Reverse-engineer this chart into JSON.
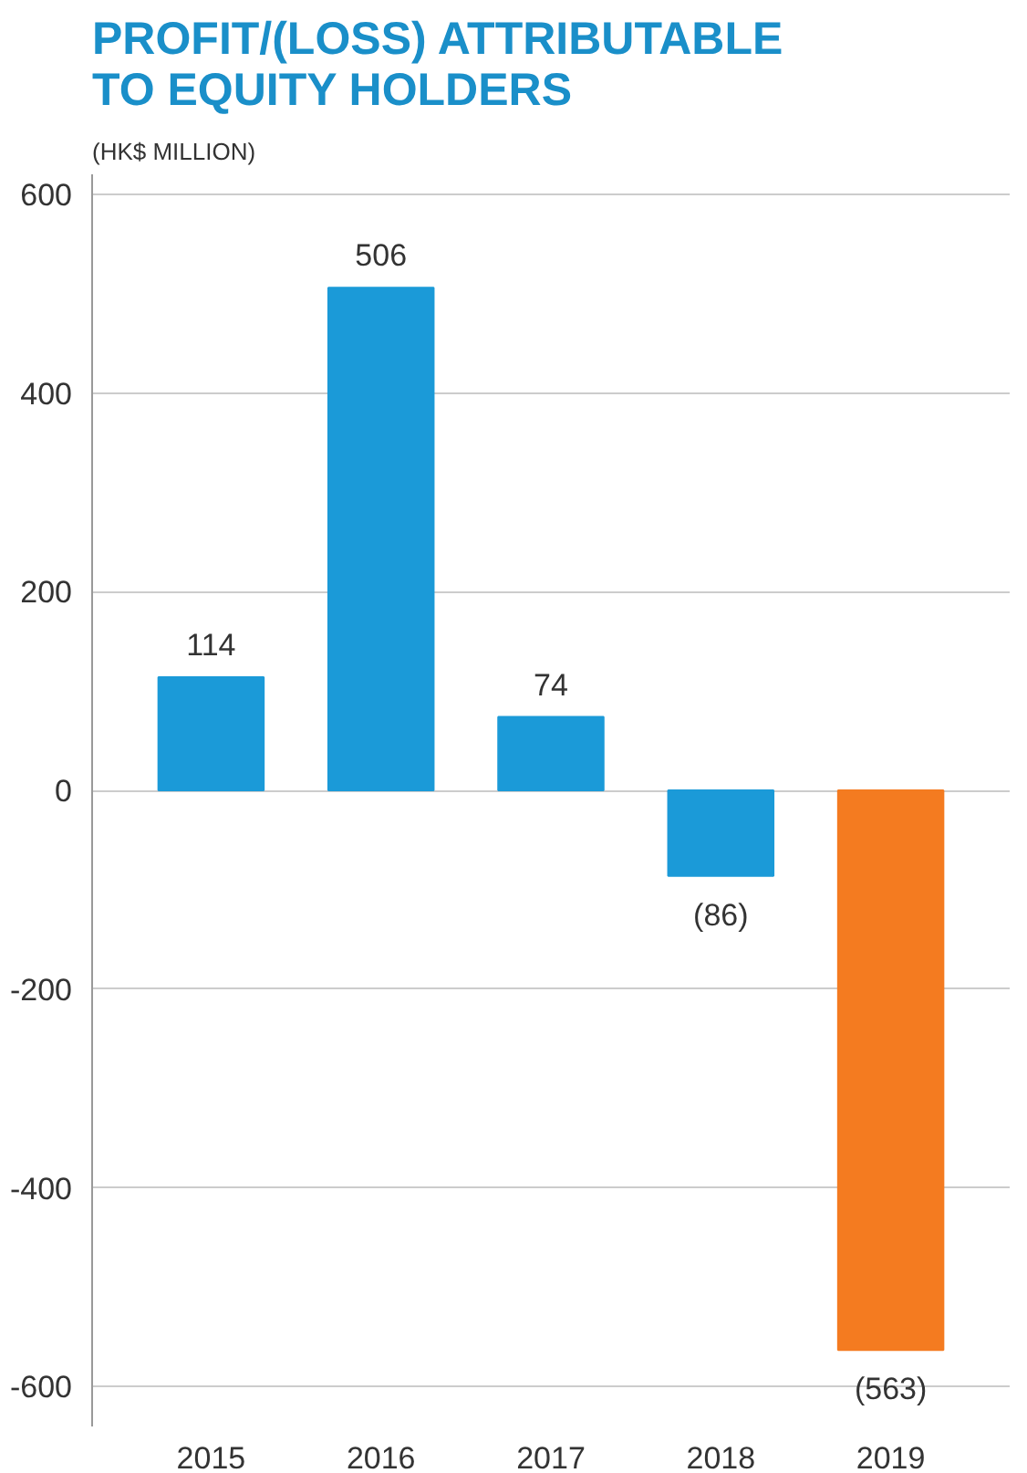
{
  "chart_data": {
    "type": "bar",
    "title": "PROFIT/(LOSS) ATTRIBUTABLE TO EQUITY HOLDERS",
    "subtitle": "(HK$ MILLION)",
    "categories": [
      "2015",
      "2016",
      "2017",
      "2018",
      "2019"
    ],
    "values": [
      114,
      506,
      74,
      -86,
      -563
    ],
    "colors": [
      "#1b9ad8",
      "#1b9ad8",
      "#1b9ad8",
      "#1b9ad8",
      "#f47b20"
    ],
    "value_labels": [
      "114",
      "506",
      "74",
      "(86)",
      "(563)"
    ],
    "ylim": [
      -640,
      620
    ],
    "yticks": [
      -600,
      -400,
      -200,
      0,
      200,
      400,
      600
    ],
    "grid": "y"
  }
}
